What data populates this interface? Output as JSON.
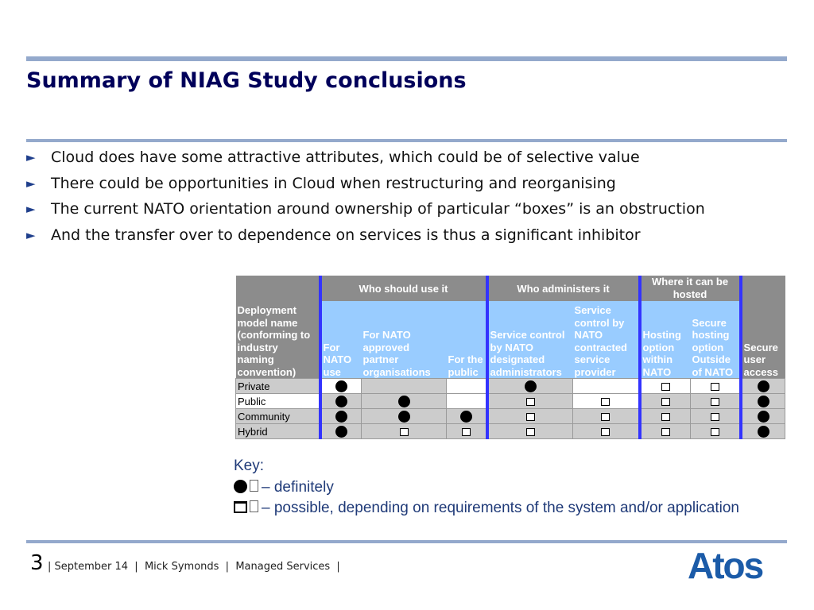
{
  "title": "Summary of NIAG Study conclusions",
  "bullets": [
    "Cloud does have some attractive attributes, which could be of selective value",
    "There could be opportunities in Cloud when restructuring and reorganising",
    "The current NATO orientation around ownership of particular “boxes” is an obstruction",
    "And the transfer over to dependence on services is thus a significant inhibitor"
  ],
  "bullet_marker": "►",
  "table": {
    "groups": {
      "who_use": "Who should use it",
      "who_admin": "Who administers it",
      "where_hosted": "Where it can be hosted"
    },
    "columns": {
      "name": "Deployment model name (conforming to industry naming convention)",
      "nato_use": "For NATO use",
      "partners": "For NATO approved partner organisations",
      "public": "For the public",
      "nato_admin": "Service control by NATO designated administrators",
      "contracted": "Service control by NATO contracted service provider",
      "hosting_within": "Hosting option within NATO",
      "hosting_outside": "Secure hosting option Outside of NATO",
      "secure_access": "Secure user access"
    },
    "rows": [
      {
        "name": "Private",
        "cells": [
          "dot",
          "",
          "",
          "dot",
          "",
          "sq",
          "sq",
          "dot"
        ]
      },
      {
        "name": "Public",
        "cells": [
          "dot",
          "dot",
          "",
          "sq",
          "sq",
          "sq",
          "sq",
          "dot"
        ]
      },
      {
        "name": "Community",
        "cells": [
          "dot",
          "dot",
          "dot",
          "sq",
          "sq",
          "sq",
          "sq",
          "dot"
        ]
      },
      {
        "name": "Hybrid",
        "cells": [
          "dot",
          "sq",
          "sq",
          "sq",
          "sq",
          "sq",
          "sq",
          "dot"
        ]
      }
    ],
    "colors": {
      "header_grey": "#8c8c8c",
      "header_blue": "#99ccff",
      "separator": "#3333ff",
      "cell_grey": "#cccccc"
    }
  },
  "key": {
    "heading": "Key:",
    "definitely": "– definitely",
    "possible": "– possible, depending on requirements of the system and/or application"
  },
  "footer": {
    "page_number": "3",
    "text": "| September 14  |  Mick Symonds  |  Managed Services  |"
  },
  "logo": {
    "text": "Atos",
    "color": "#1b5ba8"
  }
}
